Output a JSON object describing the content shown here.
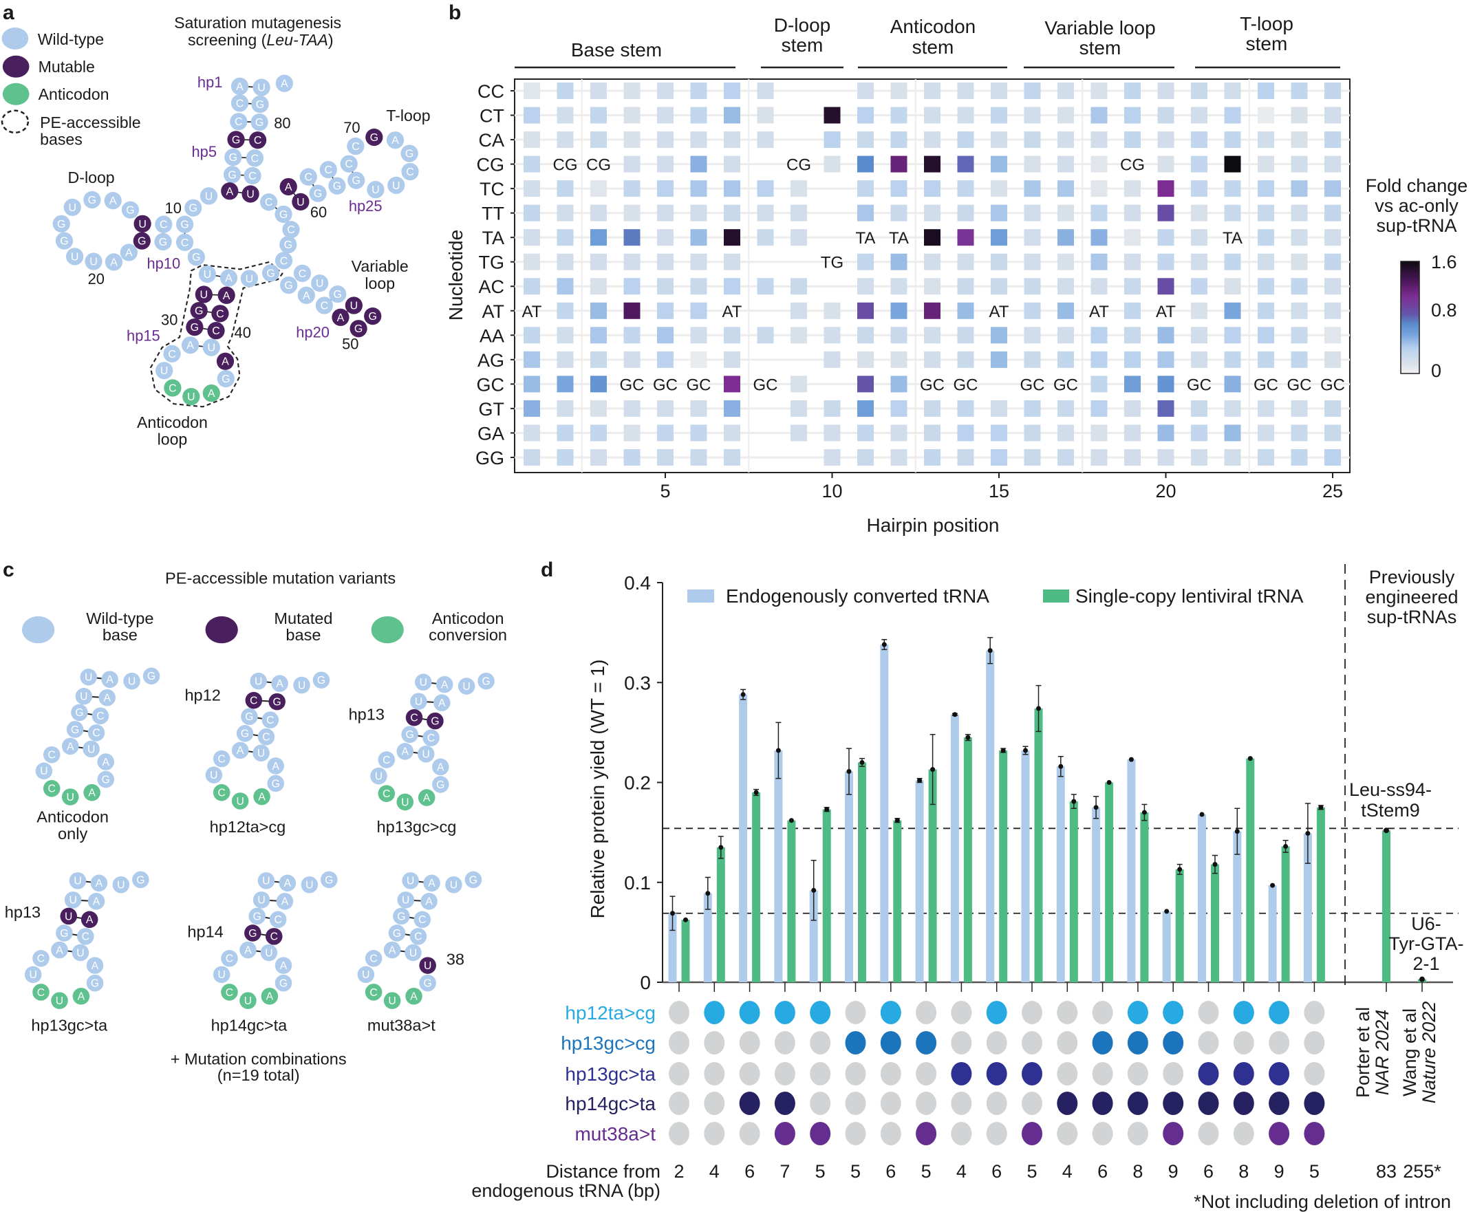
{
  "panel_labels": {
    "a": "a",
    "b": "b",
    "c": "c",
    "d": "d"
  },
  "colors": {
    "wild_type": "#aecbeb",
    "mutable": "#4a1f5e",
    "anticodon": "#5fc18e",
    "endogenous_bar": "#aecbeb",
    "lentiviral_bar": "#4dbb83",
    "hp12ta_cg": "#27aae1",
    "hp13gc_cg": "#1c75bc",
    "hp13gc_ta": "#2e3192",
    "hp14gc_ta": "#262262",
    "mut38a_t": "#662d91",
    "absent_dot": "#d1d3d4",
    "hp_label": "#6a2c91"
  },
  "panel_a": {
    "title_line1": "Saturation mutagenesis",
    "title_line2_prefix": "screening (",
    "title_italic": "Leu-TAA",
    "title_suffix": ")",
    "legend": {
      "wild_type": "Wild-type",
      "mutable": "Mutable",
      "anticodon": "Anticodon",
      "pe_line1": "PE-accessible",
      "pe_line2": "bases"
    },
    "regions": {
      "d_loop": "D-loop",
      "t_loop": "T-loop",
      "variable_line1": "Variable",
      "variable_line2": "loop",
      "anticodon_line1": "Anticodon",
      "anticodon_line2": "loop"
    },
    "hairpins": [
      "hp1",
      "hp5",
      "hp10",
      "hp15",
      "hp20",
      "hp25"
    ],
    "positions": [
      "80",
      "70",
      "60",
      "10",
      "20",
      "30",
      "40",
      "50"
    ],
    "nucleotides": [
      {
        "b": "A",
        "t": "w"
      },
      {
        "b": "U",
        "t": "w"
      },
      {
        "b": "A",
        "t": "w"
      },
      {
        "b": "C",
        "t": "w"
      },
      {
        "b": "G",
        "t": "w"
      },
      {
        "b": "C",
        "t": "w"
      },
      {
        "b": "G",
        "t": "w"
      },
      {
        "b": "G",
        "t": "m"
      },
      {
        "b": "C",
        "t": "m"
      },
      {
        "b": "G",
        "t": "w"
      },
      {
        "b": "C",
        "t": "w"
      },
      {
        "b": "G",
        "t": "w"
      },
      {
        "b": "C",
        "t": "w"
      },
      {
        "b": "A",
        "t": "m"
      },
      {
        "b": "U",
        "t": "m"
      },
      {
        "b": "U",
        "t": "w"
      },
      {
        "b": "G",
        "t": "w"
      },
      {
        "b": "U",
        "t": "m"
      },
      {
        "b": "C",
        "t": "w"
      },
      {
        "b": "G",
        "t": "w"
      },
      {
        "b": "G",
        "t": "m"
      },
      {
        "b": "G",
        "t": "w"
      },
      {
        "b": "C",
        "t": "w"
      },
      {
        "b": "G",
        "t": "w"
      },
      {
        "b": "A",
        "t": "w"
      },
      {
        "b": "G",
        "t": "w"
      },
      {
        "b": "U",
        "t": "w"
      },
      {
        "b": "G",
        "t": "w"
      },
      {
        "b": "G",
        "t": "w"
      },
      {
        "b": "U",
        "t": "w"
      },
      {
        "b": "U",
        "t": "w"
      },
      {
        "b": "A",
        "t": "w"
      },
      {
        "b": "A",
        "t": "w"
      },
      {
        "b": "G",
        "t": "w"
      },
      {
        "b": "U",
        "t": "w"
      },
      {
        "b": "A",
        "t": "w"
      },
      {
        "b": "U",
        "t": "w"
      },
      {
        "b": "G",
        "t": "w"
      },
      {
        "b": "U",
        "t": "m"
      },
      {
        "b": "A",
        "t": "m"
      },
      {
        "b": "G",
        "t": "m"
      },
      {
        "b": "C",
        "t": "m"
      },
      {
        "b": "G",
        "t": "m"
      },
      {
        "b": "C",
        "t": "m"
      },
      {
        "b": "A",
        "t": "w"
      },
      {
        "b": "U",
        "t": "w"
      },
      {
        "b": "C",
        "t": "w"
      },
      {
        "b": "U",
        "t": "w"
      },
      {
        "b": "C",
        "t": "a"
      },
      {
        "b": "U",
        "t": "a"
      },
      {
        "b": "A",
        "t": "a"
      },
      {
        "b": "G",
        "t": "w"
      },
      {
        "b": "A",
        "t": "m"
      },
      {
        "b": "G",
        "t": "w"
      },
      {
        "b": "C",
        "t": "w"
      },
      {
        "b": "U",
        "t": "w"
      },
      {
        "b": "A",
        "t": "w"
      },
      {
        "b": "C",
        "t": "w"
      },
      {
        "b": "G",
        "t": "w"
      },
      {
        "b": "U",
        "t": "m"
      },
      {
        "b": "A",
        "t": "m"
      },
      {
        "b": "G",
        "t": "m"
      },
      {
        "b": "G",
        "t": "m"
      },
      {
        "b": "C",
        "t": "w"
      },
      {
        "b": "G",
        "t": "w"
      },
      {
        "b": "C",
        "t": "w"
      },
      {
        "b": "G",
        "t": "w"
      },
      {
        "b": "C",
        "t": "w"
      },
      {
        "b": "A",
        "t": "m"
      },
      {
        "b": "U",
        "t": "m"
      },
      {
        "b": "C",
        "t": "w"
      },
      {
        "b": "G",
        "t": "w"
      },
      {
        "b": "C",
        "t": "w"
      },
      {
        "b": "G",
        "t": "w"
      },
      {
        "b": "C",
        "t": "w"
      },
      {
        "b": "G",
        "t": "w"
      },
      {
        "b": "C",
        "t": "w"
      },
      {
        "b": "G",
        "t": "m"
      },
      {
        "b": "A",
        "t": "w"
      },
      {
        "b": "G",
        "t": "w"
      },
      {
        "b": "C",
        "t": "w"
      },
      {
        "b": "U",
        "t": "w"
      },
      {
        "b": "U",
        "t": "w"
      }
    ]
  },
  "panel_b": {
    "group_headers": [
      {
        "line1": "Base stem",
        "line2": ""
      },
      {
        "line1": "D-loop",
        "line2": "stem"
      },
      {
        "line1": "Anticodon",
        "line2": "stem"
      },
      {
        "line1": "Variable loop",
        "line2": "stem"
      },
      {
        "line1": "T-loop",
        "line2": "stem"
      }
    ],
    "colorbar": {
      "title_line1": "Fold change",
      "title_line2": "vs ac-only",
      "title_line3": "sup-tRNA",
      "ticks": [
        "1.6",
        "0.8",
        "0"
      ]
    }
  },
  "panel_c": {
    "title": "PE-accessible mutation variants",
    "legend": [
      {
        "line1": "Wild-type",
        "line2": "base"
      },
      {
        "line1": "Mutated",
        "line2": "base"
      },
      {
        "line1": "Anticodon",
        "line2": "conversion"
      }
    ],
    "variants": [
      {
        "name_line1": "Anticodon",
        "name_line2": "only",
        "hp_label": "",
        "bases": "UAUGUAGCGCAUCUCUAGA",
        "types": "wwwwwwwwwwwwwwaaaww"
      },
      {
        "name_line1": "hp12ta>cg",
        "name_line2": "",
        "hp_label": "hp12",
        "bases": "UAUGCGGCGCAUCUCUAGA",
        "types": "wwwwmmwwwwwwwwaaaww"
      },
      {
        "name_line1": "hp13gc>cg",
        "name_line2": "",
        "hp_label": "hp13",
        "bases": "UAUGUACGGCAUCUCUAGA",
        "types": "wwwwwwmmwwwwwwaaaww"
      },
      {
        "name_line1": "hp13gc>ta",
        "name_line2": "",
        "hp_label": "hp13",
        "bases": "UAUGUAUAGCAUCUCUAGA",
        "types": "wwwwwwmmwwwwwwaaaww"
      },
      {
        "name_line1": "hp14gc>ta",
        "name_line2": "",
        "hp_label": "hp14",
        "bases": "UAUGUAGCGCAUCUCUAGA",
        "types": "wwwwwwwwmmwwwwaaaww"
      },
      {
        "name_line1": "mut38a>t",
        "name_line2": "",
        "hp_label": "38",
        "bases": "UAUGUAGCGCAUCUCUAGU",
        "types": "wwwwwwwwwwwwwwaaawm"
      }
    ],
    "footer_line1": "+ Mutation combinations",
    "footer_line2": "(n=19 total)"
  },
  "chart_data": [
    {
      "type": "heatmap",
      "xlabel": "Hairpin position",
      "ylabel": "Nucleotide",
      "rows": [
        "CC",
        "CT",
        "CA",
        "CG",
        "TC",
        "TT",
        "TA",
        "TG",
        "AC",
        "AT",
        "AA",
        "AG",
        "GC",
        "GT",
        "GA",
        "GG"
      ],
      "x_range": [
        1,
        25
      ],
      "x_ticks": [
        "5",
        "10",
        "15",
        "20",
        "25"
      ],
      "color_range": [
        0,
        1.6
      ],
      "values": [
        [
          0.1,
          0.3,
          0.2,
          0.15,
          0.2,
          0.3,
          0.35,
          0.2,
          null,
          null,
          0.2,
          0.15,
          0.2,
          0.2,
          0.2,
          0.3,
          0.2,
          0.15,
          0.3,
          0.2,
          0.25,
          0.2,
          0.35,
          0.3,
          0.3
        ],
        [
          0.35,
          0.2,
          0.3,
          0.15,
          0.2,
          0.3,
          0.45,
          0.15,
          null,
          1.5,
          0.35,
          0.3,
          0.2,
          0.2,
          0.3,
          0.2,
          0.15,
          0.4,
          0.35,
          0.25,
          0.2,
          0.35,
          0.05,
          0.15,
          0.2
        ],
        [
          0.15,
          0.2,
          0.25,
          0.15,
          0.2,
          0.2,
          0.2,
          0.2,
          null,
          0.35,
          0.25,
          0.3,
          0.2,
          0.3,
          0.2,
          0.25,
          0.2,
          0.2,
          0.3,
          0.2,
          0.3,
          0.3,
          0.2,
          0.15,
          0.3
        ],
        [
          0.3,
          "CG",
          "CG",
          0.2,
          0.2,
          0.5,
          0.2,
          null,
          "CG",
          0.15,
          0.7,
          1.2,
          1.5,
          0.8,
          0.45,
          0.15,
          0.2,
          0.1,
          "CG",
          0.15,
          0.3,
          1.6,
          0.15,
          0.2,
          0.2
        ],
        [
          0.2,
          0.3,
          0.1,
          0.3,
          0.35,
          0.4,
          0.4,
          0.35,
          0.15,
          null,
          0.3,
          0.35,
          0.35,
          0.3,
          0.15,
          0.4,
          0.4,
          0.1,
          0.15,
          1.1,
          0.3,
          0.3,
          0.35,
          0.4,
          0.4
        ],
        [
          0.3,
          0.2,
          0.2,
          0.15,
          0.2,
          0.2,
          0.25,
          0.2,
          0.2,
          null,
          0.4,
          0.25,
          0.2,
          0.25,
          0.4,
          0.2,
          0.15,
          0.3,
          0.2,
          0.9,
          0.15,
          0.25,
          0.25,
          0.2,
          0.3
        ],
        [
          0.2,
          0.3,
          0.6,
          0.75,
          0.2,
          0.45,
          1.5,
          0.25,
          0.2,
          null,
          "TA",
          "TA",
          1.55,
          1.05,
          0.6,
          0.2,
          0.5,
          0.5,
          0.1,
          0.3,
          0.2,
          "TA",
          0.3,
          0.2,
          0.2
        ],
        [
          0.15,
          0.2,
          0.2,
          0.2,
          0.2,
          0.2,
          0.2,
          null,
          null,
          "TG",
          0.3,
          0.45,
          0.2,
          0.2,
          0.25,
          0.2,
          0.15,
          0.4,
          0.2,
          0.3,
          0.2,
          0.3,
          0.2,
          0.15,
          0.3
        ],
        [
          0.3,
          0.4,
          0.15,
          0.35,
          0.25,
          0.25,
          0.35,
          0.3,
          0.25,
          null,
          0.2,
          0.2,
          0.15,
          0.25,
          0.25,
          0.25,
          0.2,
          0.2,
          0.25,
          0.9,
          0.3,
          0.15,
          0.3,
          0.3,
          0.2
        ],
        [
          "AT",
          0.3,
          0.45,
          1.3,
          0.35,
          0.35,
          "AT",
          null,
          0.2,
          0.15,
          0.9,
          0.55,
          1.2,
          0.45,
          "AT",
          0.3,
          0.45,
          "AT",
          0.3,
          "AT",
          0.15,
          0.55,
          0.3,
          0.2,
          0.2
        ],
        [
          0.3,
          0.2,
          0.4,
          0.3,
          0.4,
          0.2,
          0.25,
          0.25,
          0.15,
          0.2,
          0.25,
          0.25,
          0.2,
          0.25,
          0.45,
          0.2,
          0.2,
          0.35,
          0.25,
          0.45,
          0.2,
          0.35,
          0.35,
          0.25,
          0.1
        ],
        [
          0.4,
          0.2,
          0.25,
          0.2,
          0.35,
          0.05,
          0.2,
          null,
          null,
          0.2,
          0.15,
          0.15,
          0.2,
          0.25,
          0.45,
          0.25,
          0.3,
          0.35,
          0.35,
          0.4,
          0.2,
          0.3,
          0.3,
          0.3,
          0.15
        ],
        [
          0.45,
          0.55,
          0.65,
          "GC",
          "GC",
          "GC",
          1.1,
          "GC",
          0.15,
          null,
          0.85,
          0.45,
          "GC",
          "GC",
          null,
          "GC",
          "GC",
          0.3,
          0.6,
          0.65,
          "GC",
          0.5,
          "GC",
          "GC",
          "GC"
        ],
        [
          0.5,
          0.2,
          0.15,
          0.2,
          0.2,
          0.2,
          0.5,
          null,
          0.2,
          0.25,
          0.6,
          0.35,
          0.25,
          0.3,
          0.2,
          0.3,
          0.25,
          0.35,
          0.2,
          0.8,
          0.25,
          0.2,
          0.2,
          0.2,
          0.25
        ],
        [
          0.2,
          0.3,
          0.3,
          0.15,
          0.3,
          0.3,
          0.2,
          null,
          0.2,
          0.2,
          0.3,
          0.2,
          0.25,
          0.35,
          0.35,
          0.25,
          0.2,
          0.15,
          0.2,
          0.45,
          0.3,
          0.45,
          0.2,
          0.25,
          0.25
        ],
        [
          0.25,
          0.3,
          0.2,
          0.3,
          0.25,
          0.25,
          0.25,
          null,
          null,
          0.2,
          0.25,
          0.2,
          0.3,
          0.25,
          0.35,
          0.25,
          0.25,
          0.2,
          0.2,
          0.2,
          0.2,
          0.2,
          0.25,
          0.3,
          0.35
        ]
      ]
    },
    {
      "type": "bar",
      "ylabel": "Relative protein yield (WT = 1)",
      "ylim": [
        0,
        0.4
      ],
      "y_ticks": [
        "0",
        "0.1",
        "0.2",
        "0.3",
        "0.4"
      ],
      "grid": false,
      "legend_position": "top",
      "series": [
        {
          "name": "Endogenously converted tRNA",
          "values": [
            0.069,
            0.089,
            0.288,
            0.232,
            0.092,
            0.211,
            0.338,
            0.202,
            0.268,
            0.332,
            0.232,
            0.216,
            0.175,
            0.223,
            0.071,
            0.168,
            0.151,
            0.097,
            0.149
          ],
          "err": [
            0.017,
            0.016,
            0.005,
            0.028,
            0.03,
            0.023,
            0.005,
            0.002,
            0.001,
            0.013,
            0.004,
            0.01,
            0.011,
            0,
            0,
            0,
            0.023,
            0,
            0.03
          ]
        },
        {
          "name": "Single-copy lentiviral tRNA",
          "values": [
            0.0625,
            0.135,
            0.19,
            0.162,
            0.173,
            0.22,
            0.162,
            0.213,
            0.245,
            0.232,
            0.274,
            0.181,
            0.2,
            0.17,
            0.113,
            0.118,
            0.224,
            0.136,
            0.175
          ],
          "err": [
            0,
            0.011,
            0.003,
            0,
            0.002,
            0.004,
            0.002,
            0.035,
            0.003,
            0.002,
            0.023,
            0.007,
            0,
            0.008,
            0.005,
            0.009,
            0,
            0.006,
            0.002
          ]
        }
      ],
      "reference_lines": [
        0.154,
        0.069
      ],
      "reference_header": {
        "line1": "Previously",
        "line2": "engineered",
        "line3": "sup-tRNAs"
      },
      "references": [
        {
          "label_line1": "Leu-ss94-",
          "label_line2": "tStem9",
          "label_line3": "",
          "value": 0.152,
          "source_line1": "Porter et al",
          "source_line2": "NAR 2024",
          "distance": "83"
        },
        {
          "label_line1": "U6-",
          "label_line2": "Tyr-GTA-",
          "label_line3": "2-1",
          "value": 0.003,
          "source_line1": "Wang et al",
          "source_line2": "Nature 2022",
          "distance": "255*"
        }
      ],
      "mutations": [
        {
          "label": "hp12ta>cg",
          "color": "#27aae1",
          "present": [
            0,
            1,
            1,
            1,
            1,
            0,
            1,
            0,
            0,
            1,
            0,
            0,
            0,
            1,
            1,
            0,
            1,
            1,
            0
          ]
        },
        {
          "label": "hp13gc>cg",
          "color": "#1c75bc",
          "present": [
            0,
            0,
            0,
            0,
            0,
            1,
            1,
            1,
            0,
            0,
            0,
            0,
            1,
            1,
            1,
            0,
            0,
            0,
            0
          ]
        },
        {
          "label": "hp13gc>ta",
          "color": "#2e3192",
          "present": [
            0,
            0,
            0,
            0,
            0,
            0,
            0,
            0,
            1,
            1,
            1,
            0,
            0,
            0,
            0,
            1,
            1,
            1,
            0
          ]
        },
        {
          "label": "hp14gc>ta",
          "color": "#262262",
          "present": [
            0,
            0,
            1,
            1,
            0,
            0,
            0,
            0,
            0,
            0,
            0,
            1,
            1,
            1,
            1,
            1,
            1,
            1,
            1
          ]
        },
        {
          "label": "mut38a>t",
          "color": "#662d91",
          "present": [
            0,
            0,
            0,
            1,
            1,
            0,
            0,
            1,
            0,
            0,
            1,
            0,
            0,
            0,
            1,
            0,
            0,
            1,
            1
          ]
        }
      ],
      "distance_label_line1": "Distance from",
      "distance_label_line2": "endogenous tRNA (bp)",
      "distances": [
        "2",
        "4",
        "6",
        "7",
        "5",
        "5",
        "6",
        "5",
        "4",
        "6",
        "5",
        "4",
        "6",
        "8",
        "9",
        "6",
        "8",
        "9",
        "5"
      ],
      "footnote": "*Not including deletion of intron"
    }
  ]
}
